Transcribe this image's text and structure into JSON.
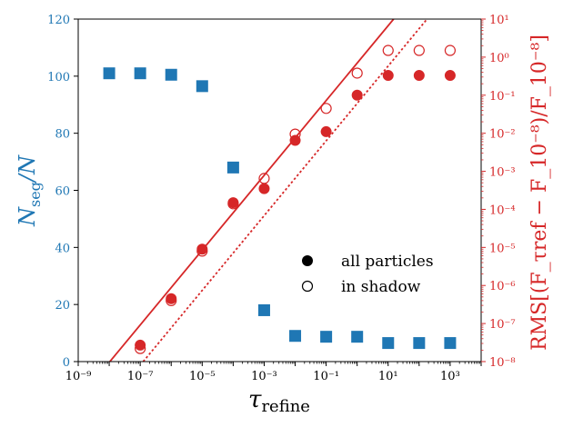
{
  "colors": {
    "blue": "#1f77b4",
    "red": "#d62728",
    "axis": "#000000"
  },
  "chart_data": {
    "type": "scatter",
    "xlabel": "τ_refine",
    "ylabel_left": "N_seg/N",
    "ylabel_right": "RMS[(F_τref − F_10⁻⁸)/F_10⁻⁸]",
    "x_scale": "log",
    "xlim": [
      1e-09,
      10000.0
    ],
    "ylim_left": [
      0,
      120
    ],
    "ylim_right": [
      1e-08,
      10
    ],
    "y_right_scale": "log",
    "x_tick_labels": [
      "10⁻⁹",
      "10⁻⁷",
      "10⁻⁵",
      "10⁻³",
      "10⁻¹",
      "10¹",
      "10³"
    ],
    "y_left_tick_labels": [
      "0",
      "20",
      "40",
      "60",
      "80",
      "100",
      "120"
    ],
    "y_right_tick_labels": [
      "10⁻⁸",
      "10⁻⁷",
      "10⁻⁶",
      "10⁻⁵",
      "10⁻⁴",
      "10⁻³",
      "10⁻²",
      "10⁻¹",
      "10⁰",
      "10¹"
    ],
    "legend": {
      "position": "lower-right",
      "entries": [
        {
          "label": "all particles",
          "marker": "filled-circle"
        },
        {
          "label": "in shadow",
          "marker": "open-circle"
        }
      ]
    },
    "series": [
      {
        "axis": "left",
        "marker": "square",
        "color": "#1f77b4",
        "x": [
          1e-08,
          1e-07,
          1e-06,
          1e-05,
          0.0001,
          0.001,
          0.01,
          0.1,
          1,
          10,
          100,
          1000
        ],
        "y": [
          101,
          101,
          100.5,
          96.5,
          68,
          18,
          9,
          8.7,
          8.7,
          6.5,
          6.5,
          6.5
        ]
      },
      {
        "axis": "right",
        "marker": "filled-circle",
        "color": "#d62728",
        "x": [
          1e-07,
          1e-06,
          1e-05,
          0.0001,
          0.001,
          0.01,
          0.1,
          1,
          10,
          100,
          1000
        ],
        "y": [
          2.7e-08,
          4.5e-07,
          9e-06,
          0.00015,
          0.00035,
          0.0065,
          0.011,
          0.1,
          0.33,
          0.33,
          0.33
        ]
      },
      {
        "axis": "right",
        "marker": "open-circle",
        "color": "#d62728",
        "x": [
          1e-07,
          1e-06,
          1e-05,
          0.0001,
          0.001,
          0.01,
          0.1,
          1,
          10,
          100,
          1000
        ],
        "y": [
          2.2e-08,
          4e-07,
          8e-06,
          0.00014,
          0.00065,
          0.0095,
          0.045,
          0.38,
          1.5,
          1.5,
          1.5
        ]
      }
    ],
    "lines": [
      {
        "axis": "right",
        "style": "solid",
        "color": "#d62728",
        "x": [
          1.05e-08,
          15.0
        ],
        "y": [
          1e-08,
          10
        ]
      },
      {
        "axis": "right",
        "style": "dotted",
        "color": "#d62728",
        "x": [
          1.25e-07,
          180.0
        ],
        "y": [
          1e-08,
          10
        ]
      }
    ]
  }
}
